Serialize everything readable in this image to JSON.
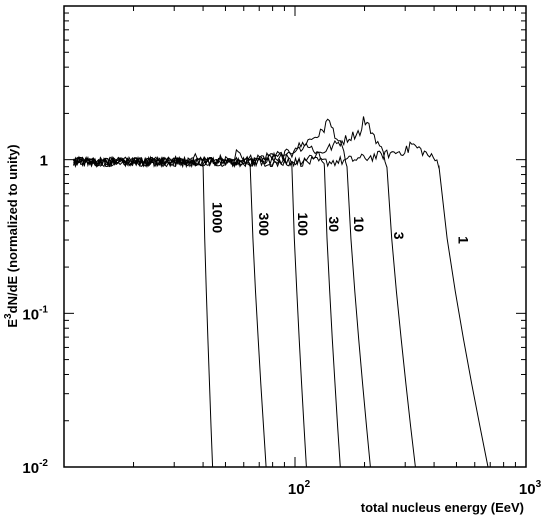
{
  "chart_data": {
    "type": "line",
    "xlabel": "total nucleus energy (EeV)",
    "ylabel_main": "E",
    "ylabel_sup": "3",
    "ylabel_rest": "dN/dE (normalized to unity)",
    "x_scale": "log",
    "y_scale": "log",
    "xlim": [
      10,
      1000
    ],
    "ylim": [
      0.01,
      10
    ],
    "grid": false,
    "x_ticks": [
      {
        "value": 100,
        "base": "10",
        "exp": "2"
      },
      {
        "value": 1000,
        "base": "10",
        "exp": "3"
      }
    ],
    "y_ticks": [
      {
        "value": 1,
        "base": "1",
        "exp": ""
      },
      {
        "value": 0.1,
        "base": "10",
        "exp": "-1"
      },
      {
        "value": 0.01,
        "base": "10",
        "exp": "-2"
      }
    ],
    "series": [
      {
        "name": "1000",
        "cutoff": 40,
        "end": 44,
        "peak": 1.08
      },
      {
        "name": "300",
        "cutoff": 64,
        "end": 75,
        "peak": 1.12
      },
      {
        "name": "100",
        "cutoff": 97,
        "end": 112,
        "peak": 1.15
      },
      {
        "name": "30",
        "cutoff": 134,
        "end": 157,
        "peak": 1.3
      },
      {
        "name": "10",
        "cutoff": 168,
        "end": 212,
        "peak": 1.9
      },
      {
        "name": "3",
        "cutoff": 250,
        "end": 332,
        "peak": 1.9
      },
      {
        "name": "1",
        "cutoff": 420,
        "end": 685,
        "peak": 1.28
      }
    ],
    "label_positions": [
      {
        "name": "1000",
        "x": 44,
        "y": 0.42
      },
      {
        "name": "300",
        "x": 70,
        "y": 0.38
      },
      {
        "name": "100",
        "x": 103,
        "y": 0.38
      },
      {
        "name": "30",
        "x": 140,
        "y": 0.38
      },
      {
        "name": "10",
        "x": 180,
        "y": 0.38
      },
      {
        "name": "3",
        "x": 268,
        "y": 0.32
      },
      {
        "name": "1",
        "x": 510,
        "y": 0.3
      }
    ]
  }
}
